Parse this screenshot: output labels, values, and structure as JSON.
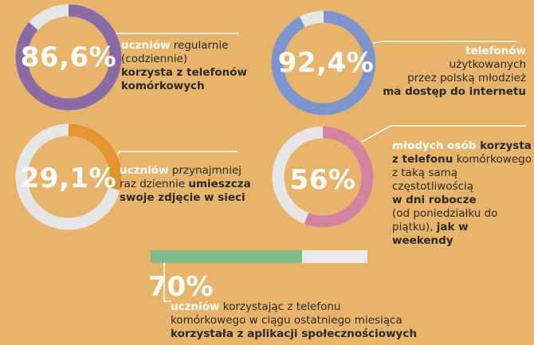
{
  "colors": {
    "background": "#e8b36b",
    "track": "#e6e6e6",
    "purple": "#8c6aa3",
    "blue": "#7d95cc",
    "orange": "#e3942f",
    "pink": "#d4829e",
    "green": "#7fbc8a",
    "line": "#ffffff"
  },
  "chart_data": [
    {
      "type": "donut",
      "value": 86.6,
      "label": "86,6%",
      "color": "purple",
      "text": [
        {
          "parts": [
            {
              "t": "uczniów",
              "s": "w"
            },
            {
              "t": " regularnie",
              "s": ""
            }
          ]
        },
        {
          "parts": [
            {
              "t": "(codziennie)",
              "s": ""
            }
          ]
        },
        {
          "parts": [
            {
              "t": "korzysta z telefonów",
              "s": "hl"
            }
          ]
        },
        {
          "parts": [
            {
              "t": "komórkowych",
              "s": "hl"
            }
          ]
        }
      ]
    },
    {
      "type": "donut",
      "value": 92.4,
      "label": "92,4%",
      "color": "blue",
      "text": [
        {
          "parts": [
            {
              "t": "telefonów",
              "s": "w"
            }
          ]
        },
        {
          "parts": [
            {
              "t": "użytkowanych",
              "s": ""
            }
          ]
        },
        {
          "parts": [
            {
              "t": "przez polską młodzież",
              "s": ""
            }
          ]
        },
        {
          "parts": [
            {
              "t": "ma dostęp do internetu",
              "s": "hl"
            }
          ]
        }
      ]
    },
    {
      "type": "donut",
      "value": 29.1,
      "label": "29,1%",
      "color": "orange",
      "text": [
        {
          "parts": [
            {
              "t": "uczniów",
              "s": "w"
            },
            {
              "t": " przynajmniej",
              "s": ""
            }
          ]
        },
        {
          "parts": [
            {
              "t": "raz dziennie ",
              "s": ""
            },
            {
              "t": "umieszcza",
              "s": "hl"
            }
          ]
        },
        {
          "parts": [
            {
              "t": "swoje zdjęcie w sieci",
              "s": "hl"
            }
          ]
        }
      ]
    },
    {
      "type": "donut",
      "value": 56,
      "label": "56%",
      "color": "pink",
      "text": [
        {
          "parts": [
            {
              "t": "młodych osób",
              "s": "w"
            },
            {
              "t": " korzysta",
              "s": "hl"
            }
          ]
        },
        {
          "parts": [
            {
              "t": "z telefonu",
              "s": "hl"
            },
            {
              "t": " komórkowego",
              "s": ""
            }
          ]
        },
        {
          "parts": [
            {
              "t": "z taką samą",
              "s": ""
            }
          ]
        },
        {
          "parts": [
            {
              "t": "częstotliwością",
              "s": ""
            }
          ]
        },
        {
          "parts": [
            {
              "t": "w dni robocze",
              "s": "hl"
            }
          ]
        },
        {
          "parts": [
            {
              "t": "(od poniedziałku do",
              "s": ""
            }
          ]
        },
        {
          "parts": [
            {
              "t": "piątku), ",
              "s": ""
            },
            {
              "t": "jak w weekendy",
              "s": "hl"
            }
          ]
        }
      ]
    },
    {
      "type": "bar",
      "value": 70,
      "label": "70%",
      "color": "green",
      "text": [
        {
          "parts": [
            {
              "t": "uczniów",
              "s": "w"
            },
            {
              "t": " korzystając z telefonu",
              "s": ""
            }
          ]
        },
        {
          "parts": [
            {
              "t": "komórkowego w ciągu ostatniego miesiąca",
              "s": ""
            }
          ]
        },
        {
          "parts": [
            {
              "t": "korzystała z aplikacji społecznościowych",
              "s": "hl"
            }
          ]
        }
      ]
    }
  ]
}
